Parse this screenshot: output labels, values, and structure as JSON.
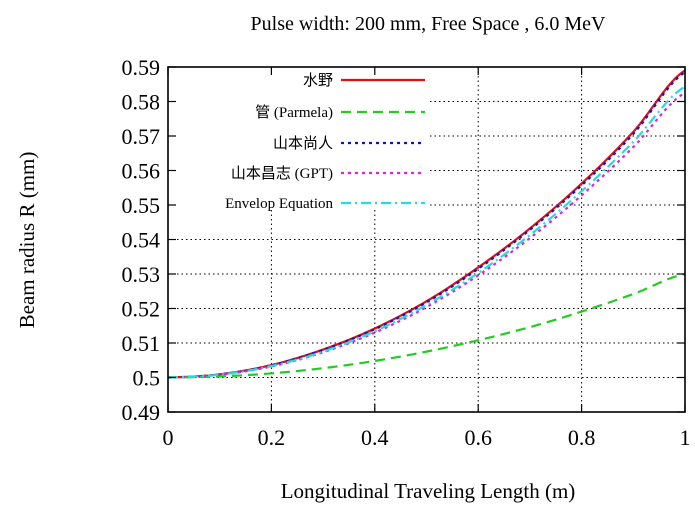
{
  "chart_data": {
    "type": "line",
    "title": "Pulse width: 200 mm, Free Space , 6.0 MeV",
    "xlabel": "Longitudinal Traveling Length (m)",
    "ylabel": "Beam radius R (mm)",
    "xlim": [
      0,
      1
    ],
    "ylim": [
      0.49,
      0.59
    ],
    "xticks": [
      "0",
      "0.2",
      "0.4",
      "0.6",
      "0.8",
      "1"
    ],
    "yticks": [
      "0.49",
      "0.5",
      "0.51",
      "0.52",
      "0.53",
      "0.54",
      "0.55",
      "0.56",
      "0.57",
      "0.58",
      "0.59"
    ],
    "grid": true,
    "legend_position": "top-left",
    "series": [
      {
        "name": "水野",
        "color": "#e01010",
        "dash": "solid",
        "x": [
          0,
          0.1,
          0.2,
          0.3,
          0.4,
          0.5,
          0.6,
          0.7,
          0.8,
          0.9,
          1.0
        ],
        "y": [
          0.5,
          0.5009,
          0.5036,
          0.5081,
          0.5142,
          0.5221,
          0.5319,
          0.5432,
          0.5562,
          0.5712,
          0.589
        ]
      },
      {
        "name": "管 (Parmela)",
        "color": "#22cc22",
        "dash": "dashed",
        "x": [
          0,
          0.1,
          0.2,
          0.3,
          0.4,
          0.5,
          0.6,
          0.7,
          0.8,
          0.9,
          1.0
        ],
        "y": [
          0.5,
          0.5003,
          0.5012,
          0.5027,
          0.5048,
          0.5075,
          0.5108,
          0.5146,
          0.5191,
          0.5242,
          0.53
        ]
      },
      {
        "name": "山本尚人",
        "color": "#1010cc",
        "dash": "dotted",
        "x": [
          0,
          0.1,
          0.2,
          0.3,
          0.4,
          0.5,
          0.6,
          0.7,
          0.8,
          0.9,
          1.0
        ],
        "y": [
          0.5,
          0.5009,
          0.5035,
          0.508,
          0.514,
          0.5218,
          0.5315,
          0.5428,
          0.5557,
          0.5706,
          0.5885
        ]
      },
      {
        "name": "山本昌志 (GPT)",
        "color": "#dd22dd",
        "dash": "dotted",
        "x": [
          0,
          0.1,
          0.2,
          0.3,
          0.4,
          0.5,
          0.6,
          0.7,
          0.8,
          0.9,
          1.0
        ],
        "y": [
          0.5,
          0.5008,
          0.5032,
          0.5073,
          0.513,
          0.5204,
          0.5296,
          0.5404,
          0.5528,
          0.5668,
          0.5825
        ]
      },
      {
        "name": "Envelop Equation",
        "color": "#22dddd",
        "dash": "dashdot",
        "x": [
          0,
          0.1,
          0.2,
          0.3,
          0.4,
          0.5,
          0.6,
          0.7,
          0.8,
          0.9,
          1.0
        ],
        "y": [
          0.5,
          0.5008,
          0.5033,
          0.5075,
          0.5134,
          0.521,
          0.5303,
          0.5413,
          0.554,
          0.5683,
          0.5843
        ]
      }
    ]
  }
}
